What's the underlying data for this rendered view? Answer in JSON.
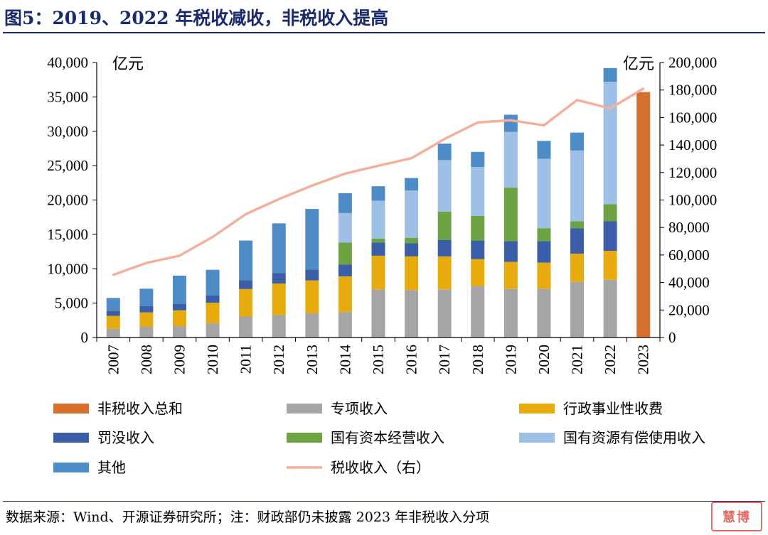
{
  "figure": {
    "title": "图5：2019、2022 年税收减收，非税收入提高",
    "source": "数据来源：Wind、开源证券研究所；注：财政部仍未披露 2023 年非税收入分项",
    "stamp_text": "慧博"
  },
  "chart_data": {
    "type": "bar",
    "stacked": true,
    "categories": [
      "2007",
      "2008",
      "2009",
      "2010",
      "2011",
      "2012",
      "2013",
      "2014",
      "2015",
      "2016",
      "2017",
      "2018",
      "2019",
      "2020",
      "2021",
      "2022",
      "2023"
    ],
    "left_axis": {
      "label": "亿元",
      "min": 0,
      "max": 40000,
      "ticks": [
        0,
        5000,
        10000,
        15000,
        20000,
        25000,
        30000,
        35000,
        40000
      ],
      "tick_labels": [
        "0",
        "5,000",
        "10,000",
        "15,000",
        "20,000",
        "25,000",
        "30,000",
        "35,000",
        "40,000"
      ]
    },
    "right_axis": {
      "label": "亿元",
      "min": 0,
      "max": 200000,
      "ticks": [
        0,
        20000,
        40000,
        60000,
        80000,
        100000,
        120000,
        140000,
        160000,
        180000,
        200000
      ],
      "tick_labels": [
        "0",
        "20,000",
        "40,000",
        "60,000",
        "80,000",
        "100,000",
        "120,000",
        "140,000",
        "160,000",
        "180,000",
        "200,000"
      ]
    },
    "series": [
      {
        "name": "专项收入",
        "color": "#a5a5a5",
        "values": [
          1250,
          1550,
          1650,
          2050,
          3050,
          3250,
          3500,
          3700,
          7000,
          6900,
          7000,
          7500,
          7100,
          7100,
          8100,
          8400,
          null
        ]
      },
      {
        "name": "行政事业性收费",
        "color": "#e7ab0e",
        "values": [
          1900,
          2100,
          2300,
          3000,
          4000,
          4600,
          4800,
          5200,
          4900,
          4900,
          4800,
          3900,
          3900,
          3800,
          4100,
          4200,
          null
        ]
      },
      {
        "name": "罚没收入",
        "color": "#3a5ea8",
        "values": [
          750,
          900,
          950,
          1050,
          1300,
          1500,
          1600,
          1700,
          1900,
          1900,
          2400,
          2700,
          3000,
          3100,
          3700,
          4300,
          null
        ]
      },
      {
        "name": "国有资本经营收入",
        "color": "#6ea343",
        "values": [
          0,
          0,
          0,
          0,
          0,
          0,
          0,
          3200,
          600,
          800,
          4100,
          3600,
          7800,
          1900,
          1000,
          2500,
          null
        ]
      },
      {
        "name": "国有资源有偿使用收入",
        "color": "#9fc0e6",
        "values": [
          0,
          0,
          0,
          0,
          0,
          0,
          0,
          4300,
          5500,
          6900,
          7500,
          7100,
          8100,
          10100,
          10300,
          17800,
          null
        ]
      },
      {
        "name": "其他",
        "color": "#4e8cc7",
        "values": [
          1850,
          2550,
          4100,
          3750,
          5750,
          7250,
          8800,
          2900,
          2100,
          1800,
          2400,
          2200,
          2500,
          2600,
          2600,
          2000,
          null
        ]
      },
      {
        "name": "非税收入总和",
        "color": "#d46f2c",
        "values": [
          null,
          null,
          null,
          null,
          null,
          null,
          null,
          null,
          null,
          null,
          null,
          null,
          null,
          null,
          null,
          null,
          35700
        ]
      }
    ],
    "line": {
      "name": "税收收入（右）",
      "color": "#f4b09a",
      "axis": "right",
      "values": [
        45600,
        54200,
        59500,
        73200,
        89700,
        100600,
        110500,
        119200,
        124900,
        130400,
        144400,
        156400,
        158000,
        154300,
        172700,
        166600,
        181100
      ]
    },
    "legend_order": [
      "非税收入总和",
      "专项收入",
      "行政事业性收费",
      "罚没收入",
      "国有资本经营收入",
      "国有资源有偿使用收入",
      "其他",
      "税收收入（右）"
    ]
  }
}
